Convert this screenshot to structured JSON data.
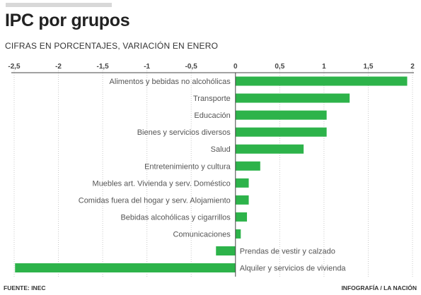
{
  "header": {
    "title": "IPC por grupos",
    "subtitle": "CIFRAS EN PORCENTAJES, VARIACIÓN EN ENERO"
  },
  "footer": {
    "source": "FUENTE: INEC",
    "credit": "INFOGRAFÍA / LA NACIÓN"
  },
  "colors": {
    "bar": "#2db34a",
    "grid": "#c8c8c8",
    "axis": "#444444"
  },
  "chart_data": {
    "type": "bar",
    "orientation": "horizontal",
    "title": "IPC por grupos",
    "subtitle": "CIFRAS EN PORCENTAJES, VARIACIÓN EN ENERO",
    "xlim": [
      -2.5,
      2
    ],
    "x_ticks": [
      "-2,5",
      "-2",
      "-1,5",
      "-1",
      "-0,5",
      "0",
      "0,5",
      "1",
      "1,5",
      "2"
    ],
    "x_tick_values": [
      -2.5,
      -2,
      -1.5,
      -1,
      -0.5,
      0,
      0.5,
      1,
      1.5,
      2
    ],
    "grid": "vertical",
    "categories": [
      "Alimentos y bebidas no alcohólicas",
      "Transporte",
      "Educación",
      "Bienes y servicios diversos",
      "Salud",
      "Entretenimiento y cultura",
      "Muebles art. Vivienda y serv. Doméstico",
      "Comidas fuera del hogar y serv. Alojamiento",
      "Bebidas alcohólicas y cigarrillos",
      "Comunicaciones",
      "Prendas de vestir y calzado",
      "Alquiler y servicios de vivienda"
    ],
    "values": [
      1.94,
      1.29,
      1.03,
      1.03,
      0.77,
      0.28,
      0.15,
      0.15,
      0.13,
      0.06,
      -0.22,
      -2.49
    ]
  }
}
